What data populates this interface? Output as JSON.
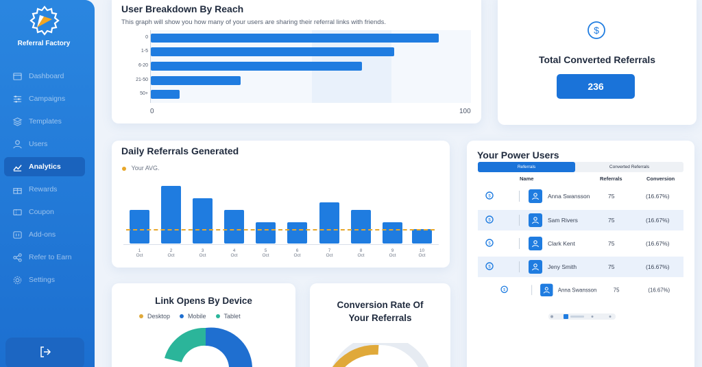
{
  "app": {
    "name": "Referral Factory"
  },
  "sidebar": {
    "items": [
      {
        "label": "Dashboard",
        "icon": "dashboard-icon"
      },
      {
        "label": "Campaigns",
        "icon": "sliders-icon"
      },
      {
        "label": "Templates",
        "icon": "layers-icon"
      },
      {
        "label": "Users",
        "icon": "user-icon"
      },
      {
        "label": "Analytics",
        "icon": "chart-icon",
        "active": true
      },
      {
        "label": "Rewards",
        "icon": "gift-icon"
      },
      {
        "label": "Coupon",
        "icon": "coupon-icon"
      },
      {
        "label": "Add-ons",
        "icon": "addons-icon"
      },
      {
        "label": "Refer to Earn",
        "icon": "share-icon"
      },
      {
        "label": "Settings",
        "icon": "gear-icon"
      }
    ],
    "logout_icon": "logout-icon"
  },
  "reach": {
    "title": "User Breakdown By Reach",
    "subtitle": "This graph will show you how many of your users are sharing their referral links with friends."
  },
  "total": {
    "title": "Total Converted Referrals",
    "value": "236",
    "icon": "dollar-icon"
  },
  "daily": {
    "title": "Daily Referrals Generated",
    "legend": "Your AVG."
  },
  "power": {
    "title": "Your Power Users",
    "tabs": [
      "Referrals",
      "Converted Referrals"
    ],
    "columns": [
      "Name",
      "Referrals",
      "Conversion"
    ],
    "rows": [
      {
        "name": "Anna Swansson",
        "referrals": "75",
        "conversion": "(16.67%)"
      },
      {
        "name": "Sam Rivers",
        "referrals": "75",
        "conversion": "(16.67%)"
      },
      {
        "name": "Clark Kent",
        "referrals": "75",
        "conversion": "(16.67%)"
      },
      {
        "name": "Jeny Smith",
        "referrals": "75",
        "conversion": "(16.67%)"
      },
      {
        "name": "Anna Swansson",
        "referrals": "75",
        "conversion": "(16.67%)"
      }
    ]
  },
  "link": {
    "title": "Link Opens By Device",
    "legend": [
      "Desktop",
      "Mobile",
      "Tablet"
    ]
  },
  "conversion": {
    "title_line1": "Conversion Rate Of",
    "title_line2": "Your Referrals"
  },
  "colors": {
    "primary": "#1f7ce0",
    "sidebar": "#2a86e0",
    "avg": "#e8a72a",
    "desktop": "#e0a93a",
    "mobile": "#1f6fd0",
    "tablet": "#2bb59a"
  },
  "chart_data": [
    {
      "type": "bar",
      "orientation": "horizontal",
      "title": "User Breakdown By Reach",
      "categories": [
        "0",
        "1-5",
        "6-20",
        "21-50",
        "50+"
      ],
      "values": [
        90,
        76,
        66,
        28,
        9
      ],
      "xlim": [
        0,
        100
      ],
      "xticks": [
        "0",
        "100"
      ]
    },
    {
      "type": "bar",
      "title": "Daily Referrals Generated",
      "categories": [
        "1 Oct",
        "2 Oct",
        "3 Oct",
        "4 Oct",
        "5 Oct",
        "6 Oct",
        "7 Oct",
        "8 Oct",
        "9 Oct",
        "10 Oct"
      ],
      "x_days": [
        "1",
        "2",
        "3",
        "4",
        "5",
        "6",
        "7",
        "8",
        "9",
        "10"
      ],
      "x_month": "Oct",
      "values": [
        49,
        84,
        66,
        49,
        31,
        31,
        60,
        49,
        31,
        21
      ],
      "avg": 22,
      "ylim": [
        0,
        100
      ],
      "legend": [
        "Your AVG."
      ]
    },
    {
      "type": "pie",
      "title": "Link Opens By Device",
      "labels": [
        "Desktop",
        "Mobile",
        "Tablet"
      ],
      "values": [
        0,
        50,
        25
      ]
    }
  ]
}
